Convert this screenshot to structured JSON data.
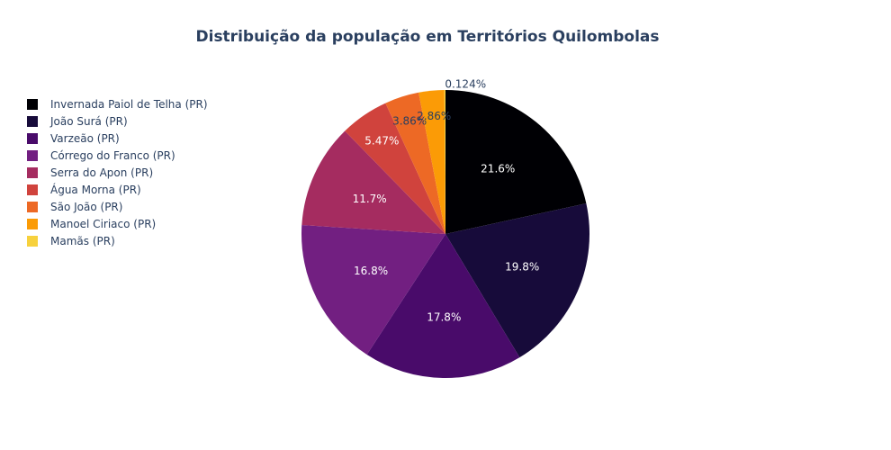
{
  "chart_data": {
    "type": "pie",
    "title": "Distribuição da população em Territórios Quilombolas",
    "legend_position": "top-left",
    "slices": [
      {
        "label": "Invernada Paiol de Telha (PR)",
        "value": 21.6,
        "text": "21.6%",
        "color": "#000004",
        "text_color": "#ffffff",
        "outside": false
      },
      {
        "label": "João Surá (PR)",
        "value": 19.8,
        "text": "19.8%",
        "color": "#180f3d",
        "text_color": "#ffffff",
        "outside": false
      },
      {
        "label": "Varzeão (PR)",
        "value": 17.8,
        "text": "17.8%",
        "color": "#440f76",
        "text_color": "#ffffff",
        "outside": false
      },
      {
        "label": "Córrego do Franco (PR)",
        "value": 16.8,
        "text": "16.8%",
        "color": "#721f81",
        "text_color": "#ffffff",
        "outside": false
      },
      {
        "label": "Serra do Apon (PR)",
        "value": 11.7,
        "text": "11.7%",
        "color": "#9e2f7f",
        "text_color": "#ffffff",
        "outside": false
      },
      {
        "label": "Água Morna (PR)",
        "value": 5.47,
        "text": "5.47%",
        "color": "#cd4071",
        "text_color": "#ffffff",
        "outside": false
      },
      {
        "label": "São João (PR)",
        "value": 3.86,
        "text": "3.86%",
        "color": "#f1605d",
        "text_color": "#2a3f5f",
        "outside": false
      },
      {
        "label": "Manoel Ciriaco (PR)",
        "value": 2.86,
        "text": "2.86%",
        "color": "#fd9668",
        "text_color": "#2a3f5f",
        "outside": false
      },
      {
        "label": "Mamãs (PR)",
        "value": 0.124,
        "text": "0.124%",
        "color": "#fcd946",
        "text_color": "#2a3f5f",
        "outside": true
      }
    ]
  }
}
